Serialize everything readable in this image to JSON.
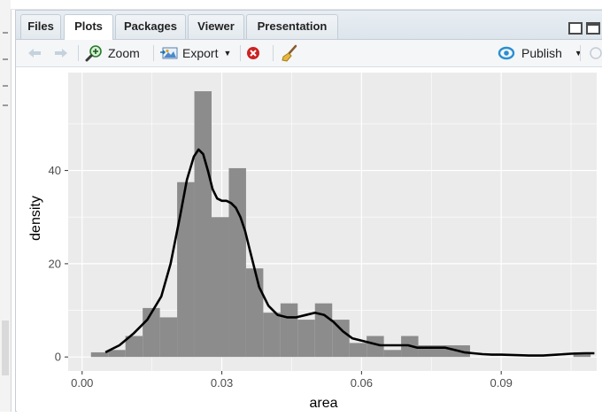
{
  "tabs": [
    {
      "label": "Files",
      "active": false
    },
    {
      "label": "Plots",
      "active": true
    },
    {
      "label": "Packages",
      "active": false
    },
    {
      "label": "Viewer",
      "active": false
    },
    {
      "label": "Presentation",
      "active": false
    }
  ],
  "toolbar": {
    "zoom_label": "Zoom",
    "export_label": "Export",
    "publish_label": "Publish"
  },
  "chart_data": {
    "type": "bar",
    "xlabel": "area",
    "ylabel": "density",
    "xlim": [
      -0.003,
      0.1105
    ],
    "ylim": [
      -3,
      61
    ],
    "x_ticks": [
      0.0,
      0.03,
      0.06,
      0.09
    ],
    "x_tick_labels": [
      "0.00",
      "0.03",
      "0.06",
      "0.09"
    ],
    "y_ticks": [
      0,
      20,
      40
    ],
    "y_tick_labels": [
      "0",
      "20",
      "40"
    ],
    "bin_width": 0.0037,
    "bin_starts": [
      0.0019,
      0.0056,
      0.0093,
      0.013,
      0.0167,
      0.0204,
      0.0241,
      0.0278,
      0.0315,
      0.0352,
      0.0389,
      0.0426,
      0.0463,
      0.05,
      0.0537,
      0.0574,
      0.0611,
      0.0648,
      0.0685,
      0.0722,
      0.0759,
      0.0796,
      0.0833,
      0.087,
      0.0907,
      0.0944,
      0.0981,
      0.1018,
      0.1055
    ],
    "bin_values": [
      1,
      1.5,
      4.5,
      10.5,
      8.5,
      37.5,
      57,
      30,
      40.5,
      19,
      9.5,
      11.5,
      8,
      11.5,
      8,
      3,
      4.5,
      1.5,
      4.5,
      2.5,
      2.5,
      2.5,
      0,
      0,
      0,
      0,
      0,
      0,
      1
    ],
    "density_curve": {
      "x": [
        0.005,
        0.008,
        0.011,
        0.014,
        0.017,
        0.019,
        0.021,
        0.0225,
        0.024,
        0.025,
        0.026,
        0.027,
        0.028,
        0.029,
        0.03,
        0.031,
        0.032,
        0.033,
        0.034,
        0.035,
        0.036,
        0.038,
        0.04,
        0.042,
        0.044,
        0.046,
        0.048,
        0.05,
        0.052,
        0.054,
        0.056,
        0.058,
        0.06,
        0.062,
        0.064,
        0.066,
        0.068,
        0.07,
        0.072,
        0.074,
        0.076,
        0.078,
        0.08,
        0.082,
        0.084,
        0.086,
        0.088,
        0.09,
        0.093,
        0.096,
        0.099,
        0.102,
        0.105,
        0.108,
        0.11
      ],
      "y": [
        1,
        2.5,
        5,
        8,
        13,
        20,
        30,
        38,
        43,
        44.5,
        43.5,
        40,
        36,
        34,
        33.5,
        33.5,
        33,
        32,
        30,
        27,
        23,
        15,
        11,
        9,
        8.5,
        8.5,
        9,
        9.5,
        9,
        7.5,
        5.5,
        4,
        3.5,
        3,
        2.5,
        2.5,
        2.5,
        2.5,
        2,
        2,
        2,
        2,
        1.5,
        1,
        0.8,
        0.6,
        0.5,
        0.5,
        0.4,
        0.3,
        0.3,
        0.5,
        0.7,
        0.8,
        0.8
      ]
    },
    "colors": {
      "panel_bg": "#ebebeb",
      "grid": "#ffffff",
      "bar_fill": "#8c8c8c",
      "curve": "#000000",
      "tick_text": "#4d4d4d"
    },
    "grid": true
  },
  "icons": {
    "back": "back-arrow-icon",
    "forward": "forward-arrow-icon",
    "zoom": "zoom-icon",
    "export": "export-icon",
    "remove": "remove-plot-icon",
    "clear": "broom-icon",
    "publish": "publish-icon"
  }
}
